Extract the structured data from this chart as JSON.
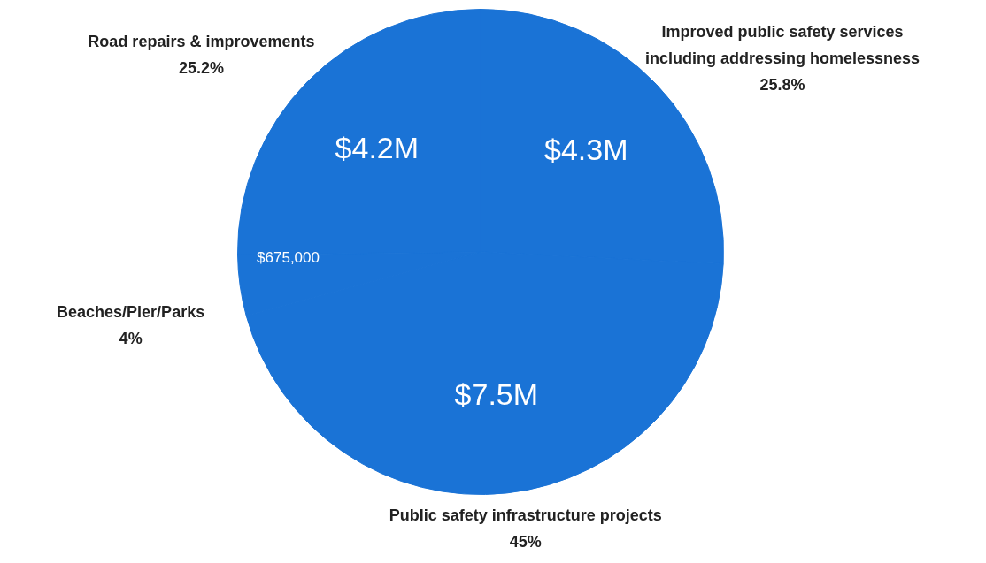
{
  "chart_data": {
    "type": "pie",
    "categories": [
      "Improved public safety services\nincluding addressing homelessness",
      "Public safety infrastructure projects",
      "Beaches/Pier/Parks",
      "Road repairs & improvements"
    ],
    "values": [
      4300000,
      7500000,
      675000,
      4200000
    ],
    "colors": [
      "#1a73d6",
      "#1a73d6",
      "#1a73d6",
      "#1a73d6"
    ],
    "value_labels": [
      "$4.3M",
      "$7.5M",
      "$675,000",
      "$4.2M"
    ],
    "annotations": [
      "25.8%",
      "45%",
      "4%",
      "25.2%"
    ],
    "legend": false
  }
}
